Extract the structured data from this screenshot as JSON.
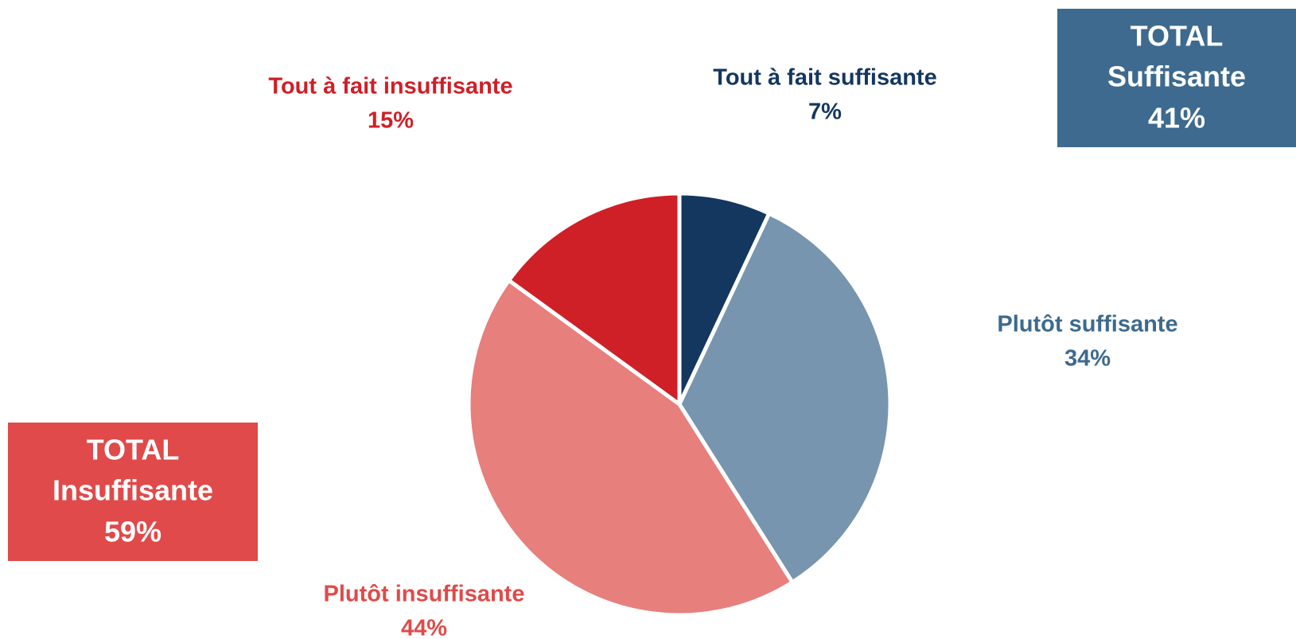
{
  "chart_data": {
    "type": "pie",
    "categories": [
      "Tout à fait suffisante",
      "Plutôt suffisante",
      "Plutôt insuffisante",
      "Tout à fait insuffisante"
    ],
    "values": [
      7,
      34,
      44,
      15
    ],
    "value_labels": [
      "7%",
      "34%",
      "44%",
      "15%"
    ],
    "colors": [
      "#14375f",
      "#7795ae",
      "#e77f7d",
      "#cf1f27"
    ],
    "label_colors": [
      "#14375f",
      "#3d6a8e",
      "#e04a4a",
      "#cf1f27"
    ],
    "totals": [
      {
        "title": "TOTAL",
        "label": "Suffisante",
        "value": 41,
        "value_label": "41%",
        "color": "#3d6a8e"
      },
      {
        "title": "TOTAL",
        "label": "Insuffisante",
        "value": 59,
        "value_label": "59%",
        "color": "#e04a4a"
      }
    ]
  }
}
